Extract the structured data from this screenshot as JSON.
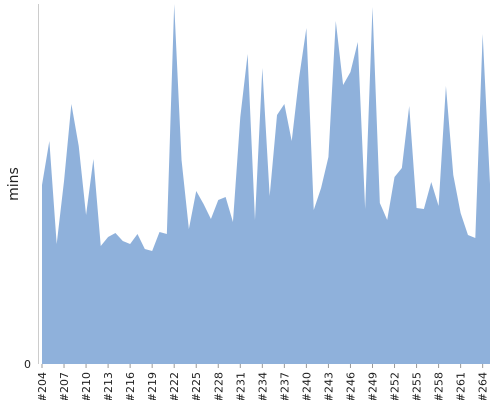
{
  "chart_data": {
    "type": "area",
    "title": "",
    "xlabel": "",
    "ylabel": "mins",
    "ylim": [
      0,
      36
    ],
    "yticks": [
      0
    ],
    "grid": false,
    "color": "#8fb1db",
    "x": [
      "#204",
      "#205",
      "#206",
      "#207",
      "#208",
      "#209",
      "#210",
      "#211",
      "#212",
      "#213",
      "#214",
      "#215",
      "#216",
      "#217",
      "#218",
      "#219",
      "#220",
      "#221",
      "#222",
      "#223",
      "#224",
      "#225",
      "#226",
      "#227",
      "#228",
      "#229",
      "#230",
      "#231",
      "#232",
      "#233",
      "#234",
      "#235",
      "#236",
      "#237",
      "#238",
      "#239",
      "#240",
      "#241",
      "#242",
      "#243",
      "#244",
      "#245",
      "#246",
      "#247",
      "#248",
      "#249",
      "#250",
      "#251",
      "#252",
      "#253",
      "#254",
      "#255",
      "#256",
      "#257",
      "#258",
      "#259",
      "#260",
      "#261",
      "#262",
      "#263",
      "#264",
      "#265"
    ],
    "xtick_labels": [
      "#204",
      "#207",
      "#210",
      "#213",
      "#216",
      "#219",
      "#222",
      "#225",
      "#228",
      "#231",
      "#234",
      "#237",
      "#240",
      "#243",
      "#246",
      "#249",
      "#252",
      "#255",
      "#258",
      "#261",
      "#264"
    ],
    "values": [
      17.9,
      22.3,
      12.0,
      18.3,
      26.0,
      21.8,
      14.9,
      20.5,
      11.8,
      12.7,
      13.1,
      12.3,
      12.0,
      13.0,
      11.5,
      11.3,
      13.2,
      13.0,
      36.0,
      20.4,
      13.5,
      17.3,
      16.0,
      14.5,
      16.4,
      16.7,
      14.2,
      24.7,
      31.0,
      14.4,
      29.6,
      16.8,
      24.9,
      26.0,
      22.3,
      28.6,
      33.6,
      15.4,
      17.6,
      20.7,
      34.3,
      27.9,
      29.2,
      32.2,
      15.5,
      35.7,
      16.1,
      14.4,
      18.7,
      19.6,
      25.8,
      15.6,
      15.5,
      18.2,
      15.8,
      27.8,
      18.9,
      15.1,
      12.9,
      12.6,
      33.0,
      18.0
    ]
  }
}
